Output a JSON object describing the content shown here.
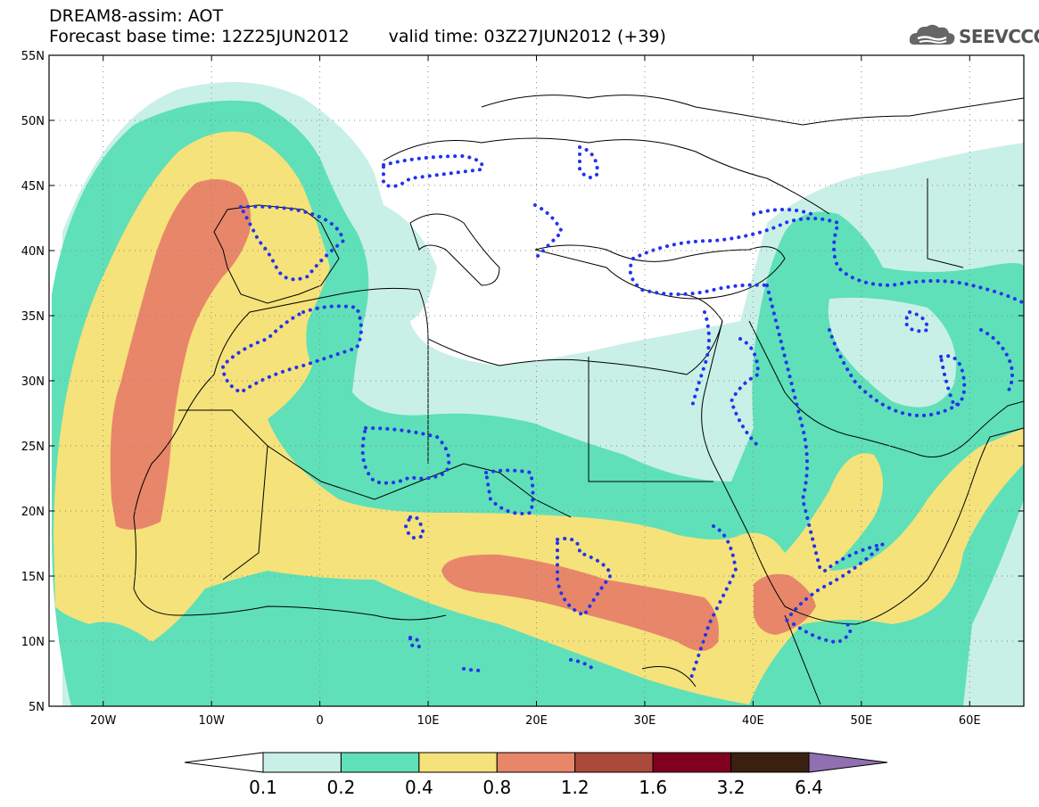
{
  "title": {
    "line1": "DREAM8-assim: AOT",
    "base": "Forecast base time: 12Z25JUN2012",
    "valid": "valid time: 03Z27JUN2012 (+39)"
  },
  "logo": {
    "text": "SEEVCCC",
    "icon": "cloud-icon"
  },
  "axes": {
    "y_labels": [
      "55N",
      "50N",
      "45N",
      "40N",
      "35N",
      "30N",
      "25N",
      "20N",
      "15N",
      "10N",
      "5N"
    ],
    "x_labels": [
      "20W",
      "10W",
      "0",
      "10E",
      "20E",
      "30E",
      "40E",
      "50E",
      "60E"
    ]
  },
  "colorbar": {
    "labels": [
      "0.1",
      "0.2",
      "0.4",
      "0.8",
      "1.2",
      "1.6",
      "3.2",
      "6.4"
    ],
    "colors": [
      "#ffffff",
      "#c8f0e6",
      "#5fe0b8",
      "#f5e27a",
      "#e8866a",
      "#aa4a3a",
      "#800020",
      "#3a2010",
      "#9070b0"
    ]
  },
  "map": {
    "colors": {
      "c1": "#c8f0e6",
      "c2": "#5fe0b8",
      "c3": "#f5e27a",
      "c4": "#e8866a",
      "contour": "#2233ee"
    }
  }
}
